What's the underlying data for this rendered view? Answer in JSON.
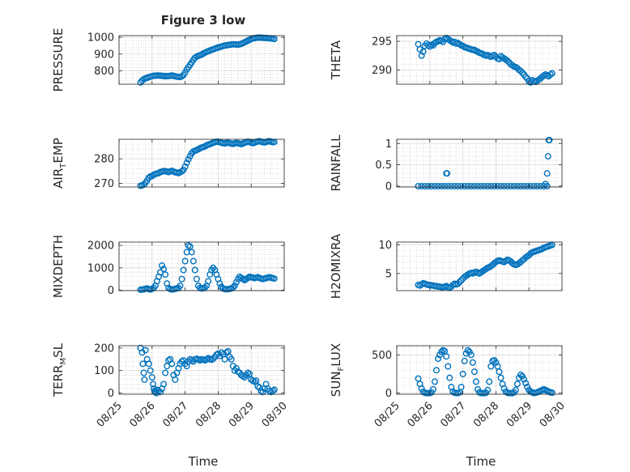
{
  "title": "Figure 3 low",
  "xlabel": "Time",
  "x_tick_labels": [
    "08/25",
    "08/26",
    "08/27",
    "08/28",
    "08/29",
    "08/30"
  ],
  "marker_color": "#0072bd",
  "chart_data": [
    {
      "type": "scatter",
      "ylabel": {
        "main": "PRESSURE",
        "sub": ""
      },
      "xlim": [
        0,
        5
      ],
      "ylim": [
        720,
        1010
      ],
      "yticks": [
        800,
        900,
        1000
      ],
      "grid": true,
      "x": [
        0.65,
        0.7,
        0.75,
        0.8,
        0.85,
        0.9,
        0.95,
        1.0,
        1.05,
        1.1,
        1.15,
        1.2,
        1.25,
        1.3,
        1.35,
        1.4,
        1.45,
        1.5,
        1.55,
        1.6,
        1.65,
        1.7,
        1.75,
        1.8,
        1.85,
        1.9,
        1.95,
        2.0,
        2.05,
        2.1,
        2.15,
        2.2,
        2.25,
        2.3,
        2.35,
        2.4,
        2.45,
        2.5,
        2.55,
        2.6,
        2.65,
        2.7,
        2.75,
        2.8,
        2.85,
        2.9,
        2.95,
        3.0,
        3.05,
        3.1,
        3.15,
        3.2,
        3.25,
        3.3,
        3.35,
        3.4,
        3.45,
        3.5,
        3.55,
        3.6,
        3.65,
        3.7,
        3.75,
        3.8,
        3.85,
        3.9,
        3.95,
        4.0,
        4.05,
        4.1,
        4.15,
        4.2,
        4.25,
        4.3,
        4.35,
        4.4,
        4.45,
        4.5,
        4.55,
        4.6,
        4.65,
        4.7
      ],
      "y": [
        730,
        742,
        750,
        755,
        758,
        762,
        765,
        768,
        770,
        771,
        772,
        772,
        771,
        770,
        769,
        768,
        768,
        769,
        770,
        772,
        770,
        767,
        765,
        764,
        763,
        767,
        775,
        790,
        808,
        822,
        836,
        850,
        866,
        878,
        885,
        889,
        893,
        897,
        903,
        908,
        913,
        917,
        921,
        925,
        928,
        932,
        936,
        939,
        942,
        945,
        948,
        951,
        952,
        954,
        955,
        957,
        958,
        958,
        957,
        956,
        958,
        961,
        965,
        970,
        975,
        980,
        985,
        990,
        993,
        995,
        997,
        998,
        998,
        998,
        997,
        996,
        996,
        995,
        994,
        993,
        992,
        990
      ]
    },
    {
      "type": "scatter",
      "ylabel": {
        "main": "THETA",
        "sub": ""
      },
      "xlim": [
        0,
        5
      ],
      "ylim": [
        287.5,
        296
      ],
      "yticks": [
        290,
        295
      ],
      "grid": true,
      "x": [
        0.65,
        0.7,
        0.75,
        0.8,
        0.85,
        0.9,
        0.95,
        1.0,
        1.05,
        1.1,
        1.15,
        1.2,
        1.25,
        1.3,
        1.35,
        1.4,
        1.45,
        1.5,
        1.55,
        1.6,
        1.65,
        1.7,
        1.75,
        1.8,
        1.85,
        1.9,
        1.95,
        2.0,
        2.05,
        2.1,
        2.15,
        2.2,
        2.25,
        2.3,
        2.35,
        2.4,
        2.45,
        2.5,
        2.55,
        2.6,
        2.65,
        2.7,
        2.75,
        2.8,
        2.85,
        2.9,
        2.95,
        3.0,
        3.05,
        3.1,
        3.15,
        3.2,
        3.25,
        3.3,
        3.35,
        3.4,
        3.45,
        3.5,
        3.55,
        3.6,
        3.65,
        3.7,
        3.75,
        3.8,
        3.85,
        3.9,
        3.95,
        4.0,
        4.05,
        4.1,
        4.15,
        4.2,
        4.25,
        4.3,
        4.35,
        4.4,
        4.45,
        4.5,
        4.55,
        4.6,
        4.65,
        4.7
      ],
      "y": [
        294.5,
        293.6,
        292.5,
        293.2,
        294.2,
        294.6,
        294.3,
        294.1,
        294.4,
        294.3,
        294.7,
        294.9,
        295.0,
        295.2,
        295.1,
        294.9,
        295.4,
        295.6,
        295.4,
        295.2,
        295.0,
        294.8,
        294.9,
        294.6,
        294.7,
        294.5,
        294.3,
        294.2,
        294.0,
        293.9,
        293.8,
        293.7,
        293.6,
        293.5,
        293.5,
        293.3,
        293.2,
        293.0,
        292.9,
        292.8,
        292.6,
        292.5,
        292.6,
        292.4,
        292.3,
        292.5,
        292.6,
        292.3,
        292.0,
        291.9,
        292.4,
        292.2,
        292.0,
        291.8,
        291.6,
        291.3,
        291.0,
        290.8,
        290.6,
        290.5,
        290.3,
        290.0,
        289.8,
        289.5,
        289.2,
        288.8,
        288.5,
        288.0,
        287.8,
        288.2,
        288.0,
        287.9,
        288.1,
        288.3,
        288.5,
        288.8,
        289.0,
        289.2,
        289.0,
        288.9,
        289.2,
        289.4
      ]
    },
    {
      "type": "scatter",
      "ylabel": {
        "main": "AIR",
        "sub": "T",
        "rest": "EMP"
      },
      "xlim": [
        0,
        5
      ],
      "ylim": [
        268.5,
        288
      ],
      "yticks": [
        270,
        280
      ],
      "grid": true,
      "x": [
        0.65,
        0.7,
        0.75,
        0.8,
        0.85,
        0.9,
        0.95,
        1.0,
        1.05,
        1.1,
        1.15,
        1.2,
        1.25,
        1.3,
        1.35,
        1.4,
        1.45,
        1.5,
        1.55,
        1.6,
        1.65,
        1.7,
        1.75,
        1.8,
        1.85,
        1.9,
        1.95,
        2.0,
        2.05,
        2.1,
        2.15,
        2.2,
        2.25,
        2.3,
        2.35,
        2.4,
        2.45,
        2.5,
        2.55,
        2.6,
        2.65,
        2.7,
        2.75,
        2.8,
        2.85,
        2.9,
        2.95,
        3.0,
        3.05,
        3.1,
        3.15,
        3.2,
        3.25,
        3.3,
        3.35,
        3.4,
        3.45,
        3.5,
        3.55,
        3.6,
        3.65,
        3.7,
        3.75,
        3.8,
        3.85,
        3.9,
        3.95,
        4.0,
        4.05,
        4.1,
        4.15,
        4.2,
        4.25,
        4.3,
        4.35,
        4.4,
        4.45,
        4.5,
        4.55,
        4.6,
        4.65,
        4.7
      ],
      "y": [
        269,
        269.2,
        269.5,
        270.2,
        271.2,
        272.3,
        272.8,
        273,
        273.5,
        273.8,
        274,
        274.2,
        274.6,
        274.8,
        275,
        275,
        274.8,
        274.6,
        274.9,
        275.1,
        274.8,
        274.5,
        274.4,
        274.2,
        274.5,
        274.9,
        275.5,
        276.8,
        278.4,
        279.8,
        281.1,
        282.3,
        283,
        283.3,
        283.6,
        283.9,
        284.3,
        284.6,
        284.8,
        285.1,
        285.5,
        285.8,
        286,
        286.3,
        286.6,
        286.8,
        287,
        287,
        286.8,
        286.6,
        286.4,
        286.3,
        286.5,
        286.6,
        286.4,
        286.2,
        286.1,
        286.3,
        286.5,
        286.4,
        286.2,
        286.0,
        286.3,
        286.6,
        286.8,
        287.0,
        286.9,
        286.6,
        286.4,
        286.6,
        286.9,
        287.1,
        287.2,
        287.0,
        286.8,
        286.7,
        286.9,
        287.1,
        287.2,
        287.0,
        286.8,
        286.9
      ]
    },
    {
      "type": "scatter",
      "ylabel": {
        "main": "RAINFALL",
        "sub": ""
      },
      "xlim": [
        0,
        5
      ],
      "ylim": [
        -0.02,
        1.1
      ],
      "yticks": [
        0,
        0.5,
        1
      ],
      "grid": true,
      "x": [
        0.65,
        0.75,
        0.85,
        0.95,
        1.05,
        1.15,
        1.25,
        1.35,
        1.45,
        1.55,
        1.65,
        1.75,
        1.85,
        1.95,
        2.05,
        2.15,
        2.25,
        2.35,
        2.45,
        2.55,
        2.65,
        2.75,
        2.85,
        2.95,
        3.05,
        3.15,
        3.25,
        3.35,
        3.45,
        3.55,
        3.65,
        3.75,
        3.85,
        3.95,
        4.05,
        4.15,
        4.25,
        4.35,
        4.45,
        4.55,
        1.5,
        1.52,
        4.5,
        4.55,
        4.58,
        4.6,
        4.62
      ],
      "y": [
        0,
        0,
        0,
        0,
        0,
        0,
        0,
        0,
        0,
        0,
        0,
        0,
        0,
        0,
        0,
        0,
        0,
        0,
        0,
        0,
        0,
        0,
        0,
        0,
        0,
        0,
        0,
        0,
        0,
        0,
        0,
        0,
        0,
        0,
        0,
        0,
        0,
        0,
        0,
        0,
        0.3,
        0.3,
        0.05,
        0.3,
        0.7,
        1.08,
        1.08
      ]
    },
    {
      "type": "scatter",
      "ylabel": {
        "main": "MIXDEPTH",
        "sub": ""
      },
      "xlim": [
        0,
        5
      ],
      "ylim": [
        -20,
        2150
      ],
      "yticks": [
        0,
        1000,
        2000
      ],
      "grid": true,
      "x": [
        0.65,
        0.7,
        0.75,
        0.8,
        0.85,
        0.9,
        0.95,
        1.0,
        1.05,
        1.1,
        1.15,
        1.2,
        1.25,
        1.3,
        1.35,
        1.4,
        1.45,
        1.5,
        1.55,
        1.6,
        1.65,
        1.7,
        1.75,
        1.8,
        1.85,
        1.9,
        1.95,
        2.0,
        2.05,
        2.1,
        2.15,
        2.2,
        2.25,
        2.3,
        2.35,
        2.4,
        2.45,
        2.5,
        2.55,
        2.6,
        2.65,
        2.7,
        2.75,
        2.8,
        2.85,
        2.9,
        2.95,
        3.0,
        3.05,
        3.1,
        3.15,
        3.2,
        3.25,
        3.3,
        3.35,
        3.4,
        3.45,
        3.5,
        3.55,
        3.6,
        3.65,
        3.7,
        3.75,
        3.8,
        3.85,
        3.9,
        3.95,
        4.0,
        4.05,
        4.1,
        4.15,
        4.2,
        4.25,
        4.3,
        4.35,
        4.4,
        4.45,
        4.5,
        4.55,
        4.6,
        4.65,
        4.7
      ],
      "y": [
        20,
        30,
        40,
        60,
        80,
        50,
        30,
        60,
        100,
        200,
        400,
        600,
        800,
        1100,
        950,
        700,
        300,
        100,
        50,
        30,
        40,
        60,
        80,
        100,
        200,
        500,
        900,
        1300,
        1700,
        2000,
        1950,
        1700,
        1300,
        900,
        500,
        200,
        100,
        80,
        90,
        120,
        200,
        400,
        700,
        900,
        1000,
        900,
        700,
        500,
        300,
        150,
        80,
        50,
        40,
        50,
        60,
        80,
        120,
        200,
        350,
        500,
        600,
        550,
        500,
        450,
        500,
        550,
        600,
        580,
        560,
        540,
        560,
        580,
        550,
        520,
        500,
        520,
        540,
        560,
        580,
        560,
        540,
        520
      ]
    },
    {
      "type": "scatter",
      "ylabel": {
        "main": "H2OMIXRA",
        "sub": ""
      },
      "xlim": [
        0,
        5
      ],
      "ylim": [
        2,
        10.5
      ],
      "yticks": [
        5,
        10
      ],
      "grid": true,
      "x": [
        0.65,
        0.7,
        0.75,
        0.8,
        0.85,
        0.9,
        0.95,
        1.0,
        1.05,
        1.1,
        1.15,
        1.2,
        1.25,
        1.3,
        1.35,
        1.4,
        1.45,
        1.5,
        1.55,
        1.6,
        1.65,
        1.7,
        1.75,
        1.8,
        1.85,
        1.9,
        1.95,
        2.0,
        2.05,
        2.1,
        2.15,
        2.2,
        2.25,
        2.3,
        2.35,
        2.4,
        2.45,
        2.5,
        2.55,
        2.6,
        2.65,
        2.7,
        2.75,
        2.8,
        2.85,
        2.9,
        2.95,
        3.0,
        3.05,
        3.1,
        3.15,
        3.2,
        3.25,
        3.3,
        3.35,
        3.4,
        3.45,
        3.5,
        3.55,
        3.6,
        3.65,
        3.7,
        3.75,
        3.8,
        3.85,
        3.9,
        3.95,
        4.0,
        4.05,
        4.1,
        4.15,
        4.2,
        4.25,
        4.3,
        4.35,
        4.4,
        4.45,
        4.5,
        4.55,
        4.6,
        4.65,
        4.7
      ],
      "y": [
        3.0,
        2.9,
        3.1,
        3.3,
        3.2,
        3.1,
        3.0,
        3.0,
        2.9,
        2.9,
        2.8,
        2.8,
        2.7,
        2.7,
        2.6,
        2.6,
        2.7,
        2.8,
        2.6,
        2.5,
        2.7,
        3.0,
        3.2,
        3.1,
        3.2,
        3.5,
        3.8,
        4.1,
        4.4,
        4.6,
        4.8,
        5.0,
        5.1,
        5.0,
        5.2,
        5.3,
        5.1,
        5.0,
        5.2,
        5.4,
        5.6,
        5.8,
        6.0,
        6.1,
        6.3,
        6.5,
        6.8,
        7.0,
        7.2,
        7.3,
        7.2,
        7.1,
        7.0,
        7.2,
        7.4,
        7.3,
        7.1,
        6.8,
        6.6,
        6.5,
        6.6,
        6.8,
        7.0,
        7.3,
        7.5,
        7.8,
        8.0,
        8.2,
        8.5,
        8.7,
        8.8,
        8.9,
        9.0,
        9.1,
        9.2,
        9.3,
        9.5,
        9.6,
        9.7,
        9.8,
        9.9,
        10.0
      ]
    },
    {
      "type": "scatter",
      "ylabel": {
        "main": "TERR",
        "sub": "M",
        "rest": "SL"
      },
      "xlim": [
        0,
        5
      ],
      "ylim": [
        -5,
        210
      ],
      "yticks": [
        0,
        100,
        200
      ],
      "grid": true,
      "x": [
        0.65,
        0.7,
        0.72,
        0.75,
        0.77,
        0.8,
        0.85,
        0.9,
        0.95,
        1.0,
        1.03,
        1.05,
        1.08,
        1.1,
        1.13,
        1.15,
        1.2,
        1.25,
        1.3,
        1.35,
        1.4,
        1.45,
        1.5,
        1.55,
        1.6,
        1.65,
        1.7,
        1.75,
        1.8,
        1.85,
        1.9,
        1.95,
        2.0,
        2.05,
        2.1,
        2.15,
        2.2,
        2.25,
        2.3,
        2.35,
        2.4,
        2.45,
        2.5,
        2.55,
        2.6,
        2.65,
        2.7,
        2.75,
        2.8,
        2.85,
        2.9,
        2.95,
        3.0,
        3.05,
        3.1,
        3.15,
        3.2,
        3.25,
        3.3,
        3.35,
        3.4,
        3.45,
        3.5,
        3.55,
        3.6,
        3.65,
        3.7,
        3.75,
        3.8,
        3.85,
        3.9,
        3.95,
        4.0,
        4.05,
        4.1,
        4.15,
        4.2,
        4.25,
        4.3,
        4.35,
        4.4,
        4.45,
        4.5,
        4.55,
        4.6,
        4.65,
        4.7
      ],
      "y": [
        200,
        180,
        130,
        90,
        60,
        190,
        150,
        130,
        100,
        70,
        40,
        20,
        10,
        5,
        0,
        15,
        10,
        5,
        20,
        40,
        90,
        120,
        145,
        150,
        130,
        80,
        60,
        90,
        110,
        130,
        140,
        145,
        130,
        120,
        140,
        150,
        145,
        140,
        150,
        152,
        150,
        145,
        150,
        148,
        145,
        150,
        155,
        150,
        148,
        152,
        160,
        170,
        175,
        165,
        180,
        172,
        150,
        180,
        185,
        160,
        150,
        120,
        100,
        110,
        95,
        90,
        80,
        75,
        70,
        80,
        90,
        85,
        60,
        55,
        50,
        55,
        30,
        25,
        10,
        5,
        20,
        40,
        20,
        10,
        5,
        10,
        15
      ]
    },
    {
      "type": "scatter",
      "ylabel": {
        "main": "SUN",
        "sub": "F",
        "rest": "LUX"
      },
      "xlim": [
        0,
        5
      ],
      "ylim": [
        -15,
        620
      ],
      "yticks": [
        0,
        500
      ],
      "grid": true,
      "x": [
        0.65,
        0.7,
        0.75,
        0.8,
        0.85,
        0.9,
        0.95,
        1.0,
        1.05,
        1.1,
        1.15,
        1.2,
        1.25,
        1.3,
        1.35,
        1.4,
        1.45,
        1.5,
        1.55,
        1.6,
        1.65,
        1.7,
        1.75,
        1.8,
        1.85,
        1.9,
        1.95,
        2.0,
        2.05,
        2.1,
        2.15,
        2.2,
        2.25,
        2.3,
        2.35,
        2.4,
        2.45,
        2.5,
        2.55,
        2.6,
        2.65,
        2.7,
        2.75,
        2.8,
        2.85,
        2.9,
        2.95,
        3.0,
        3.05,
        3.1,
        3.15,
        3.2,
        3.25,
        3.3,
        3.35,
        3.4,
        3.45,
        3.5,
        3.55,
        3.6,
        3.65,
        3.7,
        3.75,
        3.8,
        3.85,
        3.9,
        3.95,
        4.0,
        4.05,
        4.1,
        4.15,
        4.2,
        4.25,
        4.3,
        4.35,
        4.4,
        4.45,
        4.5,
        4.55,
        4.6,
        4.65,
        4.7
      ],
      "y": [
        190,
        120,
        60,
        20,
        5,
        0,
        0,
        0,
        10,
        50,
        150,
        300,
        450,
        500,
        540,
        560,
        550,
        480,
        350,
        200,
        80,
        20,
        5,
        0,
        0,
        10,
        80,
        250,
        420,
        520,
        560,
        540,
        500,
        400,
        280,
        150,
        50,
        10,
        0,
        0,
        0,
        5,
        40,
        150,
        350,
        420,
        430,
        400,
        350,
        280,
        200,
        120,
        60,
        20,
        5,
        0,
        0,
        0,
        10,
        40,
        120,
        200,
        240,
        220,
        180,
        130,
        80,
        40,
        20,
        10,
        0,
        5,
        10,
        20,
        30,
        40,
        50,
        40,
        30,
        20,
        10,
        5
      ]
    }
  ]
}
